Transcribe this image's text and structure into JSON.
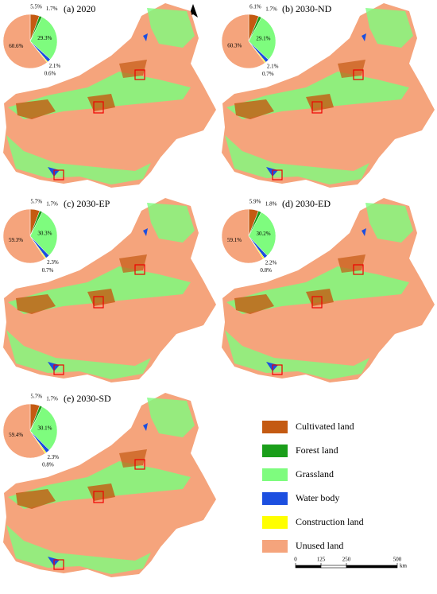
{
  "legend": {
    "items": [
      {
        "name": "Cultivated land",
        "color": "#c45a12"
      },
      {
        "name": "Forest land",
        "color": "#1a9e1a"
      },
      {
        "name": "Grassland",
        "color": "#7efc7e"
      },
      {
        "name": "Water body",
        "color": "#1c4fe0"
      },
      {
        "name": "Construction land",
        "color": "#ffff00"
      },
      {
        "name": "Unused land",
        "color": "#f5a47c"
      }
    ]
  },
  "chart_data": [
    {
      "type": "pie",
      "title": "(a) 2020",
      "values": [
        5.5,
        1.7,
        29.3,
        2.1,
        0.6,
        60.6
      ],
      "value_labels": [
        "5.5%",
        "1.7%",
        "29.3%",
        "2.1%",
        "0.6%",
        "60.6%"
      ]
    },
    {
      "type": "pie",
      "title": "(b) 2030-ND",
      "values": [
        6.1,
        1.7,
        29.1,
        2.1,
        0.7,
        60.3
      ],
      "value_labels": [
        "6.1%",
        "1.7%",
        "29.1%",
        "2.1%",
        "0.7%",
        "60.3%"
      ]
    },
    {
      "type": "pie",
      "title": "(c) 2030-EP",
      "values": [
        5.7,
        1.7,
        30.3,
        2.3,
        0.7,
        59.3
      ],
      "value_labels": [
        "5.7%",
        "1.7%",
        "30.3%",
        "2.3%",
        "0.7%",
        "59.3%"
      ]
    },
    {
      "type": "pie",
      "title": "(d) 2030-ED",
      "values": [
        5.9,
        1.8,
        30.2,
        2.2,
        0.8,
        59.1
      ],
      "value_labels": [
        "5.9%",
        "1.8%",
        "30.2%",
        "2.2%",
        "0.8%",
        "59.1%"
      ]
    },
    {
      "type": "pie",
      "title": "(e) 2030-SD",
      "values": [
        5.7,
        1.7,
        30.1,
        2.3,
        0.8,
        59.4
      ],
      "value_labels": [
        "5.7%",
        "1.7%",
        "30.1%",
        "2.3%",
        "0.8%",
        "59.4%"
      ]
    }
  ],
  "scale_bar": {
    "ticks": [
      0,
      125,
      250,
      500
    ],
    "unit": "km"
  }
}
